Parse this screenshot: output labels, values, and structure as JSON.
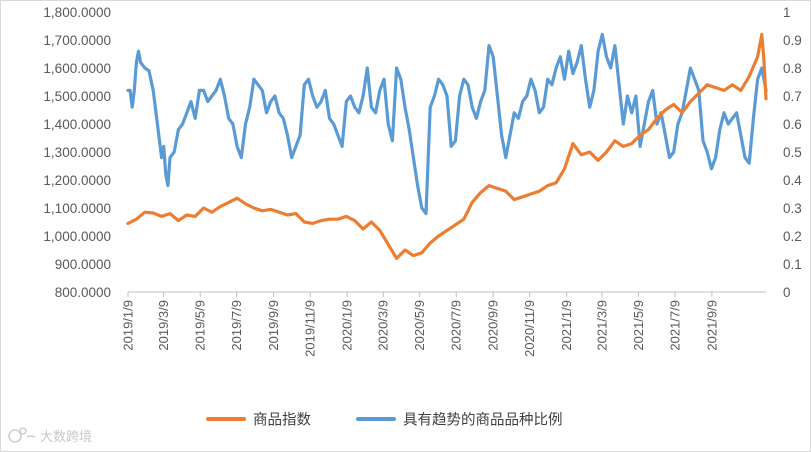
{
  "chart_data": {
    "type": "line",
    "title": "",
    "xlabel": "",
    "ylabel_left": "",
    "ylabel_right": "",
    "left_axis": {
      "range": [
        800,
        1800
      ],
      "ticks": [
        "800.0000",
        "900.0000",
        "1,000.0000",
        "1,100.0000",
        "1,200.0000",
        "1,300.0000",
        "1,400.0000",
        "1,500.0000",
        "1,600.0000",
        "1,700.0000",
        "1,800.0000"
      ]
    },
    "right_axis": {
      "range": [
        0,
        1
      ],
      "ticks": [
        "0",
        "0.1",
        "0.2",
        "0.3",
        "0.4",
        "0.5",
        "0.6",
        "0.7",
        "0.8",
        "0.9",
        "1"
      ]
    },
    "x_range": [
      0,
      152
    ],
    "x_tick_labels": [
      {
        "label": "2019/1/9",
        "index": 0
      },
      {
        "label": "2019/3/9",
        "index": 8.5
      },
      {
        "label": "2019/5/9",
        "index": 17.2
      },
      {
        "label": "2019/7/9",
        "index": 25.9
      },
      {
        "label": "2019/9/9",
        "index": 34.7
      },
      {
        "label": "2019/11/9",
        "index": 43.4
      },
      {
        "label": "2020/1/9",
        "index": 52.2
      },
      {
        "label": "2020/3/9",
        "index": 60.8
      },
      {
        "label": "2020/5/9",
        "index": 69.5
      },
      {
        "label": "2020/7/9",
        "index": 78.2
      },
      {
        "label": "2020/9/9",
        "index": 87.0
      },
      {
        "label": "2020/11/9",
        "index": 95.7
      },
      {
        "label": "2021/1/9",
        "index": 104.5
      },
      {
        "label": "2021/3/9",
        "index": 112.9
      },
      {
        "label": "2021/5/9",
        "index": 121.6
      },
      {
        "label": "2021/7/9",
        "index": 130.3
      },
      {
        "label": "2021/9/9",
        "index": 139.1
      }
    ],
    "series": [
      {
        "name": "商品指数",
        "axis": "left",
        "color": "#ED7D31",
        "points": [
          [
            0,
            1045
          ],
          [
            2,
            1060
          ],
          [
            4,
            1085
          ],
          [
            6,
            1082
          ],
          [
            8,
            1070
          ],
          [
            10,
            1080
          ],
          [
            12,
            1055
          ],
          [
            14,
            1075
          ],
          [
            16,
            1070
          ],
          [
            18,
            1100
          ],
          [
            20,
            1085
          ],
          [
            22,
            1105
          ],
          [
            24,
            1120
          ],
          [
            26,
            1135
          ],
          [
            28,
            1115
          ],
          [
            30,
            1100
          ],
          [
            32,
            1090
          ],
          [
            34,
            1095
          ],
          [
            36,
            1085
          ],
          [
            38,
            1075
          ],
          [
            40,
            1080
          ],
          [
            42,
            1050
          ],
          [
            44,
            1045
          ],
          [
            46,
            1055
          ],
          [
            48,
            1060
          ],
          [
            50,
            1060
          ],
          [
            52,
            1070
          ],
          [
            54,
            1055
          ],
          [
            56,
            1025
          ],
          [
            58,
            1050
          ],
          [
            60,
            1020
          ],
          [
            62,
            970
          ],
          [
            64,
            920
          ],
          [
            66,
            950
          ],
          [
            68,
            930
          ],
          [
            70,
            940
          ],
          [
            72,
            975
          ],
          [
            74,
            1000
          ],
          [
            76,
            1020
          ],
          [
            78,
            1040
          ],
          [
            80,
            1060
          ],
          [
            82,
            1120
          ],
          [
            84,
            1155
          ],
          [
            86,
            1180
          ],
          [
            88,
            1170
          ],
          [
            90,
            1160
          ],
          [
            92,
            1130
          ],
          [
            94,
            1140
          ],
          [
            96,
            1150
          ],
          [
            98,
            1160
          ],
          [
            100,
            1180
          ],
          [
            102,
            1190
          ],
          [
            104,
            1240
          ],
          [
            106,
            1330
          ],
          [
            108,
            1290
          ],
          [
            110,
            1300
          ],
          [
            112,
            1270
          ],
          [
            114,
            1300
          ],
          [
            116,
            1340
          ],
          [
            118,
            1320
          ],
          [
            120,
            1330
          ],
          [
            122,
            1360
          ],
          [
            124,
            1380
          ],
          [
            126,
            1420
          ],
          [
            128,
            1450
          ],
          [
            130,
            1470
          ],
          [
            132,
            1440
          ],
          [
            134,
            1480
          ],
          [
            136,
            1510
          ],
          [
            138,
            1540
          ],
          [
            140,
            1530
          ],
          [
            142,
            1520
          ],
          [
            144,
            1540
          ],
          [
            146,
            1520
          ],
          [
            148,
            1570
          ],
          [
            150,
            1640
          ],
          [
            151,
            1720
          ],
          [
            151.5,
            1630
          ],
          [
            152,
            1490
          ]
        ]
      },
      {
        "name": "具有趋势的商品品种比例",
        "axis": "right",
        "color": "#5B9BD5",
        "points": [
          [
            0,
            0.72
          ],
          [
            0.5,
            0.72
          ],
          [
            1,
            0.66
          ],
          [
            1.5,
            0.72
          ],
          [
            2,
            0.82
          ],
          [
            2.5,
            0.86
          ],
          [
            3,
            0.82
          ],
          [
            4,
            0.8
          ],
          [
            5,
            0.79
          ],
          [
            6,
            0.72
          ],
          [
            7,
            0.6
          ],
          [
            8,
            0.48
          ],
          [
            8.5,
            0.52
          ],
          [
            9,
            0.42
          ],
          [
            9.5,
            0.38
          ],
          [
            10,
            0.48
          ],
          [
            11,
            0.5
          ],
          [
            12,
            0.58
          ],
          [
            13,
            0.6
          ],
          [
            14,
            0.64
          ],
          [
            15,
            0.68
          ],
          [
            16,
            0.62
          ],
          [
            17,
            0.72
          ],
          [
            18,
            0.72
          ],
          [
            19,
            0.68
          ],
          [
            20,
            0.7
          ],
          [
            21,
            0.72
          ],
          [
            22,
            0.76
          ],
          [
            23,
            0.7
          ],
          [
            24,
            0.62
          ],
          [
            25,
            0.6
          ],
          [
            26,
            0.52
          ],
          [
            27,
            0.48
          ],
          [
            28,
            0.6
          ],
          [
            29,
            0.66
          ],
          [
            30,
            0.76
          ],
          [
            31,
            0.74
          ],
          [
            32,
            0.72
          ],
          [
            33,
            0.64
          ],
          [
            34,
            0.68
          ],
          [
            35,
            0.7
          ],
          [
            36,
            0.64
          ],
          [
            37,
            0.62
          ],
          [
            38,
            0.56
          ],
          [
            39,
            0.48
          ],
          [
            40,
            0.52
          ],
          [
            41,
            0.56
          ],
          [
            42,
            0.74
          ],
          [
            43,
            0.76
          ],
          [
            44,
            0.7
          ],
          [
            45,
            0.66
          ],
          [
            46,
            0.68
          ],
          [
            47,
            0.72
          ],
          [
            48,
            0.62
          ],
          [
            49,
            0.6
          ],
          [
            50,
            0.56
          ],
          [
            51,
            0.52
          ],
          [
            52,
            0.68
          ],
          [
            53,
            0.7
          ],
          [
            54,
            0.66
          ],
          [
            55,
            0.64
          ],
          [
            56,
            0.7
          ],
          [
            57,
            0.8
          ],
          [
            58,
            0.66
          ],
          [
            59,
            0.64
          ],
          [
            60,
            0.72
          ],
          [
            61,
            0.76
          ],
          [
            62,
            0.6
          ],
          [
            63,
            0.54
          ],
          [
            64,
            0.8
          ],
          [
            65,
            0.76
          ],
          [
            66,
            0.66
          ],
          [
            67,
            0.58
          ],
          [
            68,
            0.48
          ],
          [
            69,
            0.38
          ],
          [
            70,
            0.3
          ],
          [
            71,
            0.28
          ],
          [
            72,
            0.66
          ],
          [
            73,
            0.7
          ],
          [
            74,
            0.76
          ],
          [
            75,
            0.74
          ],
          [
            76,
            0.7
          ],
          [
            77,
            0.52
          ],
          [
            78,
            0.54
          ],
          [
            79,
            0.7
          ],
          [
            80,
            0.76
          ],
          [
            81,
            0.74
          ],
          [
            82,
            0.66
          ],
          [
            83,
            0.62
          ],
          [
            84,
            0.68
          ],
          [
            85,
            0.72
          ],
          [
            86,
            0.88
          ],
          [
            87,
            0.84
          ],
          [
            88,
            0.7
          ],
          [
            89,
            0.56
          ],
          [
            90,
            0.48
          ],
          [
            91,
            0.56
          ],
          [
            92,
            0.64
          ],
          [
            93,
            0.62
          ],
          [
            94,
            0.68
          ],
          [
            95,
            0.7
          ],
          [
            96,
            0.76
          ],
          [
            97,
            0.72
          ],
          [
            98,
            0.64
          ],
          [
            99,
            0.66
          ],
          [
            100,
            0.76
          ],
          [
            101,
            0.74
          ],
          [
            102,
            0.8
          ],
          [
            103,
            0.84
          ],
          [
            104,
            0.76
          ],
          [
            105,
            0.86
          ],
          [
            106,
            0.78
          ],
          [
            107,
            0.82
          ],
          [
            108,
            0.88
          ],
          [
            109,
            0.76
          ],
          [
            110,
            0.66
          ],
          [
            111,
            0.72
          ],
          [
            112,
            0.86
          ],
          [
            113,
            0.92
          ],
          [
            114,
            0.84
          ],
          [
            115,
            0.8
          ],
          [
            116,
            0.88
          ],
          [
            117,
            0.74
          ],
          [
            118,
            0.6
          ],
          [
            119,
            0.7
          ],
          [
            120,
            0.64
          ],
          [
            121,
            0.7
          ],
          [
            122,
            0.52
          ],
          [
            123,
            0.6
          ],
          [
            124,
            0.68
          ],
          [
            125,
            0.72
          ],
          [
            126,
            0.6
          ],
          [
            127,
            0.64
          ],
          [
            128,
            0.56
          ],
          [
            129,
            0.48
          ],
          [
            130,
            0.5
          ],
          [
            131,
            0.6
          ],
          [
            132,
            0.64
          ],
          [
            133,
            0.72
          ],
          [
            134,
            0.8
          ],
          [
            135,
            0.76
          ],
          [
            136,
            0.72
          ],
          [
            137,
            0.54
          ],
          [
            138,
            0.5
          ],
          [
            139,
            0.44
          ],
          [
            140,
            0.48
          ],
          [
            141,
            0.58
          ],
          [
            142,
            0.64
          ],
          [
            143,
            0.6
          ],
          [
            144,
            0.62
          ],
          [
            145,
            0.64
          ],
          [
            146,
            0.56
          ],
          [
            147,
            0.48
          ],
          [
            148,
            0.46
          ],
          [
            149,
            0.62
          ],
          [
            150,
            0.76
          ],
          [
            151,
            0.8
          ],
          [
            152,
            0.72
          ]
        ]
      }
    ],
    "legend": {
      "position": "bottom-center",
      "entries": [
        "商品指数",
        "具有趋势的商品品种比例"
      ]
    },
    "grid": false
  },
  "watermark": {
    "text": "大数跨境"
  }
}
